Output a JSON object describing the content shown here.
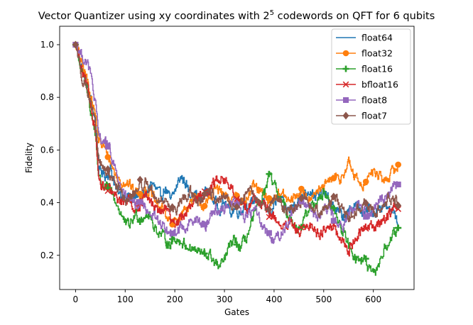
{
  "chart_data": {
    "type": "line",
    "title": "Vector Quantizer using xy coordinates with 2",
    "title_superscript": "5",
    "title_suffix": " codewords on QFT for 6 qubits",
    "xlabel": "Gates",
    "ylabel": "Fidelity",
    "xlim": [
      -32,
      682
    ],
    "ylim": [
      0.07,
      1.07
    ],
    "xticks": [
      0,
      100,
      200,
      300,
      400,
      500,
      600
    ],
    "yticks": [
      0.2,
      0.4,
      0.6,
      0.8,
      1.0
    ],
    "xtick_labels": [
      "0",
      "100",
      "200",
      "300",
      "400",
      "500",
      "600"
    ],
    "ytick_labels": [
      "0.2",
      "0.4",
      "0.6",
      "0.8",
      "1.0"
    ],
    "legend_position": "top-right",
    "marker_every": 65,
    "series": [
      {
        "name": "float64",
        "color": "#1f77b4",
        "marker": "none",
        "x": [
          0,
          10,
          20,
          30,
          40,
          45,
          50,
          60,
          70,
          80,
          90,
          100,
          110,
          120,
          130,
          140,
          150,
          160,
          170,
          180,
          190,
          200,
          210,
          220,
          230,
          240,
          250,
          260,
          270,
          280,
          290,
          300,
          310,
          320,
          330,
          340,
          350,
          360,
          370,
          380,
          390,
          400,
          410,
          420,
          430,
          440,
          450,
          460,
          470,
          480,
          490,
          500,
          510,
          520,
          530,
          540,
          550,
          560,
          570,
          580,
          590,
          600,
          610,
          620,
          630,
          640,
          650
        ],
        "y": [
          1.0,
          0.92,
          0.86,
          0.78,
          0.7,
          0.5,
          0.52,
          0.5,
          0.53,
          0.45,
          0.42,
          0.44,
          0.4,
          0.42,
          0.44,
          0.42,
          0.48,
          0.45,
          0.42,
          0.46,
          0.4,
          0.45,
          0.5,
          0.48,
          0.42,
          0.44,
          0.4,
          0.45,
          0.43,
          0.4,
          0.38,
          0.4,
          0.36,
          0.38,
          0.36,
          0.4,
          0.38,
          0.42,
          0.4,
          0.38,
          0.36,
          0.4,
          0.42,
          0.38,
          0.37,
          0.4,
          0.42,
          0.44,
          0.45,
          0.43,
          0.42,
          0.44,
          0.4,
          0.38,
          0.36,
          0.34,
          0.36,
          0.4,
          0.38,
          0.35,
          0.38,
          0.36,
          0.38,
          0.4,
          0.36,
          0.38,
          0.31
        ]
      },
      {
        "name": "float32",
        "color": "#ff7f0e",
        "marker": "circle",
        "x": [
          0,
          10,
          20,
          30,
          40,
          45,
          50,
          60,
          70,
          80,
          90,
          100,
          110,
          120,
          130,
          140,
          150,
          160,
          170,
          180,
          190,
          200,
          210,
          220,
          230,
          240,
          250,
          260,
          270,
          280,
          290,
          300,
          310,
          320,
          330,
          340,
          350,
          360,
          370,
          380,
          390,
          400,
          410,
          420,
          430,
          440,
          450,
          460,
          470,
          480,
          490,
          500,
          510,
          520,
          530,
          540,
          550,
          560,
          570,
          580,
          590,
          600,
          610,
          620,
          630,
          640,
          650
        ],
        "y": [
          1.0,
          0.93,
          0.88,
          0.8,
          0.72,
          0.63,
          0.62,
          0.6,
          0.55,
          0.5,
          0.48,
          0.48,
          0.46,
          0.44,
          0.43,
          0.45,
          0.43,
          0.4,
          0.38,
          0.36,
          0.32,
          0.33,
          0.35,
          0.38,
          0.4,
          0.42,
          0.4,
          0.38,
          0.42,
          0.46,
          0.44,
          0.42,
          0.4,
          0.44,
          0.42,
          0.4,
          0.44,
          0.46,
          0.44,
          0.42,
          0.4,
          0.42,
          0.44,
          0.42,
          0.4,
          0.42,
          0.44,
          0.43,
          0.42,
          0.45,
          0.44,
          0.46,
          0.48,
          0.5,
          0.48,
          0.52,
          0.55,
          0.5,
          0.48,
          0.47,
          0.5,
          0.52,
          0.5,
          0.48,
          0.5,
          0.52,
          0.545
        ]
      },
      {
        "name": "float16",
        "color": "#2ca02c",
        "marker": "plus",
        "x": [
          0,
          10,
          20,
          30,
          40,
          45,
          50,
          60,
          70,
          80,
          90,
          100,
          110,
          120,
          130,
          140,
          150,
          160,
          170,
          180,
          190,
          200,
          210,
          220,
          230,
          240,
          250,
          260,
          270,
          280,
          290,
          300,
          310,
          320,
          330,
          340,
          350,
          360,
          370,
          380,
          390,
          400,
          410,
          420,
          430,
          440,
          450,
          460,
          470,
          480,
          490,
          500,
          510,
          520,
          530,
          540,
          550,
          560,
          570,
          580,
          590,
          600,
          610,
          620,
          630,
          640,
          650
        ],
        "y": [
          1.0,
          0.9,
          0.84,
          0.74,
          0.64,
          0.5,
          0.47,
          0.46,
          0.44,
          0.4,
          0.36,
          0.31,
          0.32,
          0.36,
          0.34,
          0.36,
          0.34,
          0.3,
          0.28,
          0.26,
          0.24,
          0.27,
          0.25,
          0.24,
          0.23,
          0.22,
          0.21,
          0.2,
          0.2,
          0.17,
          0.15,
          0.19,
          0.24,
          0.26,
          0.22,
          0.26,
          0.3,
          0.36,
          0.4,
          0.44,
          0.5,
          0.46,
          0.42,
          0.38,
          0.34,
          0.32,
          0.3,
          0.34,
          0.38,
          0.4,
          0.42,
          0.44,
          0.4,
          0.36,
          0.32,
          0.28,
          0.24,
          0.2,
          0.18,
          0.19,
          0.14,
          0.12,
          0.17,
          0.22,
          0.25,
          0.28,
          0.28
        ]
      },
      {
        "name": "bfloat16",
        "color": "#d62728",
        "marker": "x",
        "x": [
          0,
          10,
          20,
          30,
          40,
          45,
          50,
          60,
          70,
          80,
          90,
          100,
          110,
          120,
          130,
          140,
          150,
          160,
          170,
          180,
          190,
          200,
          210,
          220,
          230,
          240,
          250,
          260,
          270,
          280,
          290,
          300,
          310,
          320,
          330,
          340,
          350,
          360,
          370,
          380,
          390,
          400,
          410,
          420,
          430,
          440,
          450,
          460,
          470,
          480,
          490,
          500,
          510,
          520,
          530,
          540,
          550,
          560,
          570,
          580,
          590,
          600,
          610,
          620,
          630,
          640,
          650
        ],
        "y": [
          1.0,
          0.9,
          0.85,
          0.76,
          0.66,
          0.48,
          0.46,
          0.45,
          0.44,
          0.42,
          0.4,
          0.42,
          0.4,
          0.38,
          0.4,
          0.42,
          0.4,
          0.38,
          0.36,
          0.38,
          0.34,
          0.32,
          0.34,
          0.36,
          0.38,
          0.4,
          0.42,
          0.44,
          0.46,
          0.48,
          0.5,
          0.48,
          0.46,
          0.42,
          0.4,
          0.38,
          0.4,
          0.42,
          0.4,
          0.38,
          0.36,
          0.34,
          0.32,
          0.3,
          0.32,
          0.3,
          0.28,
          0.3,
          0.32,
          0.3,
          0.28,
          0.3,
          0.32,
          0.3,
          0.26,
          0.24,
          0.22,
          0.26,
          0.28,
          0.3,
          0.32,
          0.3,
          0.32,
          0.34,
          0.36,
          0.38,
          0.385
        ]
      },
      {
        "name": "float8",
        "color": "#9467bd",
        "marker": "square",
        "x": [
          0,
          10,
          20,
          30,
          40,
          45,
          50,
          60,
          70,
          80,
          90,
          100,
          110,
          120,
          130,
          140,
          150,
          160,
          170,
          180,
          190,
          200,
          210,
          220,
          230,
          240,
          250,
          260,
          270,
          280,
          290,
          300,
          310,
          320,
          330,
          340,
          350,
          360,
          370,
          380,
          390,
          400,
          410,
          420,
          430,
          440,
          450,
          460,
          470,
          480,
          490,
          500,
          510,
          520,
          530,
          540,
          550,
          560,
          570,
          580,
          590,
          600,
          610,
          620,
          630,
          640,
          650
        ],
        "y": [
          1.0,
          0.96,
          0.94,
          0.88,
          0.75,
          0.65,
          0.64,
          0.63,
          0.58,
          0.52,
          0.45,
          0.42,
          0.4,
          0.38,
          0.4,
          0.38,
          0.36,
          0.34,
          0.32,
          0.3,
          0.27,
          0.28,
          0.32,
          0.3,
          0.33,
          0.35,
          0.32,
          0.31,
          0.35,
          0.38,
          0.36,
          0.38,
          0.4,
          0.42,
          0.38,
          0.34,
          0.36,
          0.38,
          0.34,
          0.3,
          0.27,
          0.26,
          0.28,
          0.3,
          0.34,
          0.38,
          0.42,
          0.4,
          0.38,
          0.36,
          0.34,
          0.36,
          0.38,
          0.34,
          0.3,
          0.32,
          0.36,
          0.38,
          0.4,
          0.36,
          0.34,
          0.38,
          0.4,
          0.42,
          0.44,
          0.48,
          0.465
        ]
      },
      {
        "name": "float7",
        "color": "#8c564b",
        "marker": "diamond",
        "x": [
          0,
          10,
          20,
          30,
          40,
          45,
          50,
          60,
          70,
          80,
          90,
          100,
          110,
          120,
          130,
          140,
          150,
          160,
          170,
          180,
          190,
          200,
          210,
          220,
          230,
          240,
          250,
          260,
          270,
          280,
          290,
          300,
          310,
          320,
          330,
          340,
          350,
          360,
          370,
          380,
          390,
          400,
          410,
          420,
          430,
          440,
          450,
          460,
          470,
          480,
          490,
          500,
          510,
          520,
          530,
          540,
          550,
          560,
          570,
          580,
          590,
          600,
          610,
          620,
          630,
          640,
          650
        ],
        "y": [
          1.0,
          0.89,
          0.84,
          0.77,
          0.66,
          0.56,
          0.54,
          0.52,
          0.5,
          0.47,
          0.44,
          0.4,
          0.42,
          0.44,
          0.46,
          0.48,
          0.45,
          0.42,
          0.4,
          0.42,
          0.38,
          0.36,
          0.4,
          0.42,
          0.44,
          0.42,
          0.4,
          0.42,
          0.44,
          0.42,
          0.4,
          0.42,
          0.4,
          0.38,
          0.4,
          0.42,
          0.44,
          0.42,
          0.4,
          0.38,
          0.4,
          0.42,
          0.4,
          0.38,
          0.37,
          0.38,
          0.4,
          0.42,
          0.4,
          0.38,
          0.36,
          0.38,
          0.4,
          0.42,
          0.38,
          0.36,
          0.34,
          0.36,
          0.38,
          0.4,
          0.38,
          0.36,
          0.38,
          0.4,
          0.42,
          0.4,
          0.42
        ]
      }
    ]
  }
}
